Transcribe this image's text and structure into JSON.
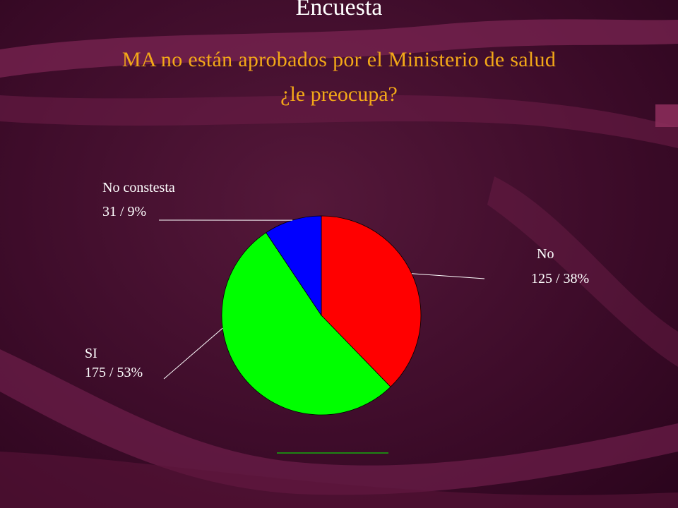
{
  "slide": {
    "title": "Encuesta",
    "subtitle_line1": "MA no están aprobados por el Ministerio de salud",
    "subtitle_line2": "¿le preocupa?"
  },
  "colors": {
    "background": "#3e0c2a",
    "title": "#ffffff",
    "subtitle": "#f3a818",
    "label": "#ffffff"
  },
  "chart_data": {
    "type": "pie",
    "title": "",
    "slices": [
      {
        "label": "No",
        "value": 125,
        "percent_label": "125 / 38%",
        "color": "#ff0000"
      },
      {
        "label": "SI",
        "value": 175,
        "percent_label": "175 / 53%",
        "color": "#00ff00"
      },
      {
        "label": "No constesta",
        "value": 31,
        "percent_label": "31 / 9%",
        "color": "#0000ff"
      }
    ],
    "start": "12 o'clock",
    "direction": "clockwise",
    "legend": "none (labels beside slices)"
  }
}
